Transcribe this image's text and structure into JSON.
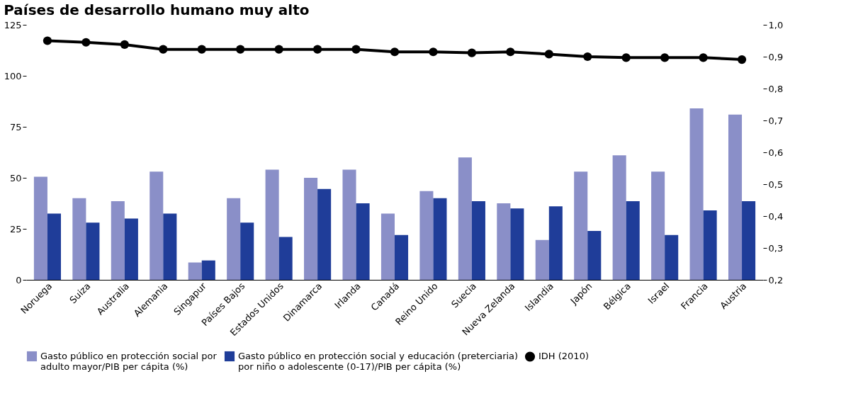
{
  "chart_data": {
    "type": "bar",
    "title": "Países de desarrollo humano muy alto",
    "categories": [
      "Noruega",
      "Suiza",
      "Australia",
      "Alemania",
      "Singapur",
      "Países Bajos",
      "Estados Unidos",
      "Dinamarca",
      "Irlanda",
      "Canadá",
      "Reino Unido",
      "Suecia",
      "Nueva Zelanda",
      "Islandia",
      "Japón",
      "Bélgica",
      "Israel",
      "Francia",
      "Austria"
    ],
    "series": [
      {
        "name": "Gasto público en protección social por adulto mayor/PIB per cápita (%)",
        "type": "bar",
        "color": "#8a8fc8",
        "values": [
          50.5,
          40,
          38.5,
          53,
          8.5,
          40,
          54,
          50,
          54,
          32.5,
          43.5,
          60,
          37.5,
          19.5,
          53,
          61,
          53,
          84,
          81
        ]
      },
      {
        "name": "Gasto público en protección social y educación (preterciaria) por niño o adolescente (0-17)/PIB per cápita (%)",
        "type": "bar",
        "color": "#1f3d99",
        "values": [
          32.5,
          28,
          30,
          32.5,
          9.5,
          28,
          21,
          44.5,
          37.5,
          22,
          40,
          38.5,
          35,
          36,
          24,
          38.5,
          22,
          34,
          38.5
        ]
      },
      {
        "name": "IDH (2010)",
        "type": "line",
        "axis": "y2",
        "color": "#000000",
        "values": [
          0.95,
          0.945,
          0.938,
          0.923,
          0.923,
          0.923,
          0.923,
          0.923,
          0.923,
          0.915,
          0.915,
          0.912,
          0.915,
          0.908,
          0.9,
          0.897,
          0.897,
          0.897,
          0.891
        ]
      }
    ],
    "ylim": [
      0,
      125
    ],
    "yticks": [
      0,
      25,
      50,
      75,
      100,
      125
    ],
    "y2lim": [
      0.2,
      1.0
    ],
    "y2ticks": [
      {
        "value": 0.2,
        "label": "0,2"
      },
      {
        "value": 0.3,
        "label": "0,3"
      },
      {
        "value": 0.4,
        "label": "0,4"
      },
      {
        "value": 0.5,
        "label": "0,5"
      },
      {
        "value": 0.6,
        "label": "0,6"
      },
      {
        "value": 0.7,
        "label": "0,7"
      },
      {
        "value": 0.8,
        "label": "0,8"
      },
      {
        "value": 0.9,
        "label": "0,9"
      },
      {
        "value": 1.0,
        "label": "1,0"
      }
    ],
    "grid": false,
    "legend": "bottom",
    "marker": "circle"
  }
}
